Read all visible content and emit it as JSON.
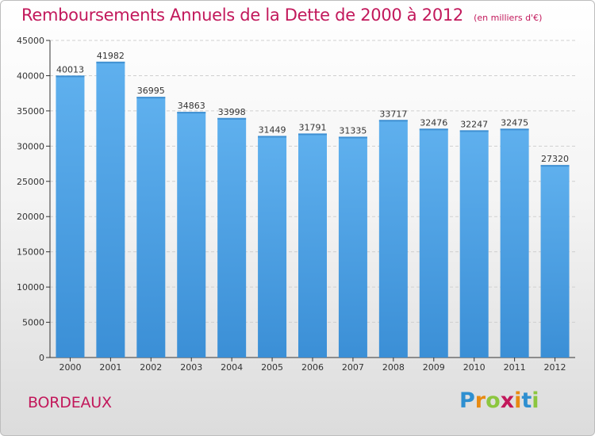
{
  "chart_data": {
    "type": "bar",
    "title": "Remboursements Annuels de la Dette de 2000 à 2012",
    "subtitle": "(en milliers d'€)",
    "categories": [
      "2000",
      "2001",
      "2002",
      "2003",
      "2004",
      "2005",
      "2006",
      "2007",
      "2008",
      "2009",
      "2010",
      "2011",
      "2012"
    ],
    "values": [
      40013,
      41982,
      36995,
      34863,
      33998,
      31449,
      31791,
      31335,
      33717,
      32476,
      32247,
      32475,
      27320
    ],
    "ylim": [
      0,
      45000
    ],
    "yticks": [
      0,
      5000,
      10000,
      15000,
      20000,
      25000,
      30000,
      35000,
      40000,
      45000
    ],
    "grid": true,
    "bar_color": "#3b8fd6",
    "bar_color_light": "#5fb0ee"
  },
  "footer": {
    "city": "BORDEAUX",
    "logo_letters": [
      "P",
      "r",
      "o",
      "x",
      "i",
      "t",
      "i"
    ],
    "logo_colors": [
      "#2e8fd0",
      "#e88a12",
      "#8cc63f",
      "#c2185b",
      "#e88a12",
      "#2e8fd0",
      "#8cc63f"
    ]
  },
  "colors": {
    "title": "#c2185b",
    "axis": "#333333",
    "grid": "#cfcfcf"
  }
}
